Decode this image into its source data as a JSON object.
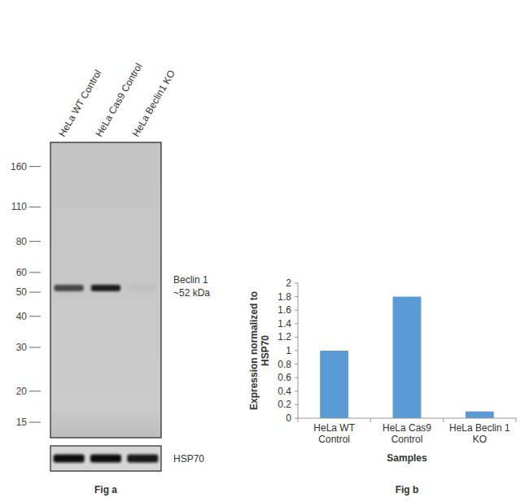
{
  "figure_a": {
    "caption": "Fig a",
    "lanes": [
      "HeLa WT Control",
      "HeLa Cas9 Control",
      "HeLa Beclin1 KO"
    ],
    "markers": [
      160,
      110,
      80,
      60,
      50,
      40,
      30,
      20,
      15
    ],
    "log": "y",
    "ylim": [
      200,
      13
    ],
    "bands": [
      {
        "label": "Beclin 1",
        "size_label": "~52 kDa",
        "kda": 52,
        "intensity": [
          0.75,
          1,
          0.04
        ]
      }
    ],
    "loading_control": {
      "label": "HSP70",
      "intensity": [
        1,
        1,
        0.95
      ]
    }
  },
  "chart_data": {
    "type": "bar",
    "annotations": [
      "Fig b"
    ],
    "x_label": "Samples",
    "y_label": "Expression normalized to HSP70",
    "categories": [
      "HeLa WT Control",
      "HeLa Cas9 Control",
      "HeLa Beclin 1 KO"
    ],
    "values": [
      1,
      1.8,
      0.1
    ],
    "color": "#5b9bd5",
    "ylim": [
      0,
      2
    ],
    "yticks": [
      0,
      0.2,
      0.4,
      0.6,
      0.8,
      1,
      1.2,
      1.4,
      1.6,
      1.8,
      2
    ],
    "grid": false
  }
}
